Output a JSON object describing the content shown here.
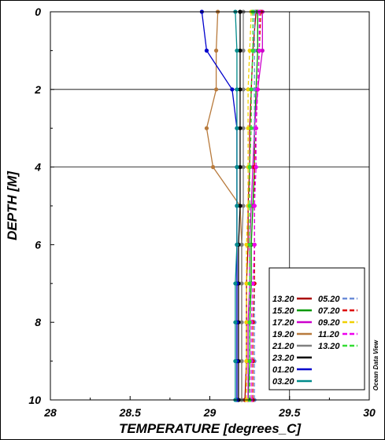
{
  "chart_data": {
    "type": "line",
    "xlabel": "TEMPERATURE [degrees_C]",
    "ylabel": "DEPTH [M]",
    "xlim": [
      28,
      30
    ],
    "ylim": [
      10,
      0
    ],
    "y_inverted": true,
    "x_ticks": [
      "28",
      "28.5",
      "29",
      "29.5",
      "30"
    ],
    "y_ticks": [
      "0",
      "2",
      "4",
      "6",
      "8",
      "10"
    ],
    "grid_x": [
      29.5
    ],
    "grid_y": [
      2,
      4
    ],
    "depths": [
      0,
      1,
      2,
      3,
      4,
      5,
      6,
      7,
      8,
      9,
      10
    ],
    "legend_position": "bottom-right",
    "watermark": "Ocean Data View",
    "series": [
      {
        "name": "13.20",
        "color": "#aa0000",
        "style": "solid",
        "values": [
          29.29,
          29.27,
          29.26,
          29.25,
          29.25,
          29.24,
          29.24,
          29.23,
          29.23,
          29.23,
          29.22
        ]
      },
      {
        "name": "15.20",
        "color": "#009900",
        "style": "solid",
        "values": [
          29.3,
          29.3,
          29.29,
          29.28,
          29.28,
          29.27,
          29.26,
          29.26,
          29.25,
          29.25,
          29.24
        ]
      },
      {
        "name": "17.20",
        "color": "#cc00cc",
        "style": "solid",
        "values": [
          29.33,
          29.33,
          29.3,
          29.28,
          29.27,
          29.26,
          29.25,
          29.25,
          29.24,
          29.24,
          29.24
        ]
      },
      {
        "name": "19.20",
        "color": "#b87a3c",
        "style": "solid",
        "values": [
          29.05,
          29.04,
          29.04,
          28.98,
          29.02,
          29.19,
          29.2,
          29.2,
          29.2,
          29.2,
          29.2
        ]
      },
      {
        "name": "21.20",
        "color": "#808080",
        "style": "solid",
        "values": [
          29.21,
          29.21,
          29.21,
          29.21,
          29.21,
          29.21,
          29.2,
          29.2,
          29.2,
          29.2,
          29.2
        ]
      },
      {
        "name": "23.20",
        "color": "#000000",
        "style": "solid",
        "values": [
          29.19,
          29.19,
          29.19,
          29.19,
          29.19,
          29.19,
          29.18,
          29.18,
          29.18,
          29.18,
          29.18
        ]
      },
      {
        "name": "01.20",
        "color": "#0000cc",
        "style": "solid",
        "values": [
          28.95,
          28.98,
          29.14,
          29.17,
          29.17,
          29.17,
          29.17,
          29.17,
          29.17,
          29.17,
          29.17
        ]
      },
      {
        "name": "03.20",
        "color": "#008b8b",
        "style": "solid",
        "values": [
          29.16,
          29.17,
          29.17,
          29.17,
          29.17,
          29.17,
          29.17,
          29.16,
          29.16,
          29.16,
          29.16
        ]
      },
      {
        "name": "05.20",
        "color": "#6a8cd8",
        "style": "dashed",
        "values": [
          29.28,
          29.28,
          29.28,
          29.28,
          29.28,
          29.28,
          29.28,
          29.28,
          29.28,
          29.28,
          29.28
        ]
      },
      {
        "name": "07.20",
        "color": "#dd0000",
        "style": "dashed",
        "values": [
          29.32,
          29.31,
          29.3,
          29.29,
          29.28,
          29.28,
          29.28,
          29.28,
          29.27,
          29.27,
          29.27
        ]
      },
      {
        "name": "09.20",
        "color": "#f0d000",
        "style": "dashed",
        "values": [
          29.26,
          29.25,
          29.24,
          29.24,
          29.24,
          29.24,
          29.23,
          29.23,
          29.23,
          29.23,
          29.23
        ]
      },
      {
        "name": "11.20",
        "color": "#ee00ee",
        "style": "dashed",
        "values": [
          29.31,
          29.31,
          29.3,
          29.29,
          29.29,
          29.28,
          29.28,
          29.27,
          29.26,
          29.26,
          29.26
        ]
      },
      {
        "name": "13.20",
        "color": "#33dd33",
        "style": "dashed",
        "values": [
          29.27,
          29.27,
          29.26,
          29.26,
          29.25,
          29.25,
          29.25,
          29.25,
          29.25,
          29.25,
          29.25
        ]
      }
    ]
  }
}
